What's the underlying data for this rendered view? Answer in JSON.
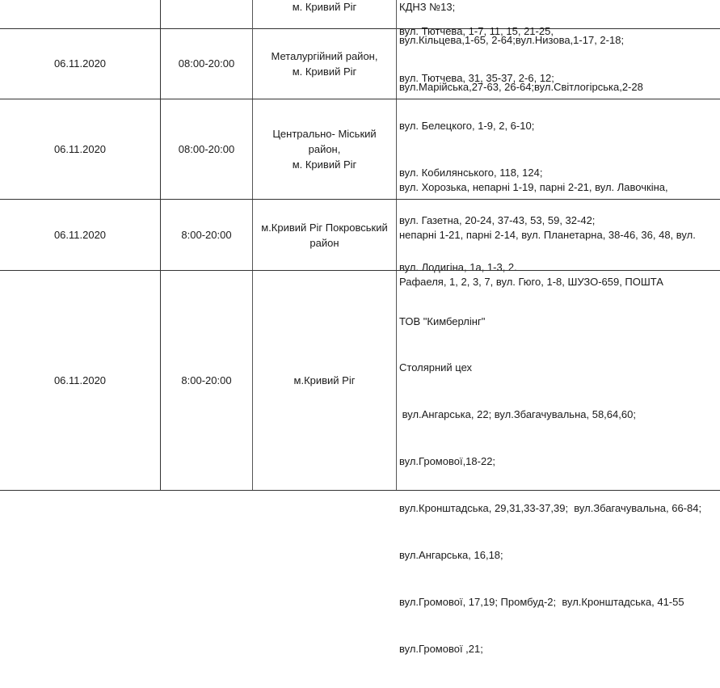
{
  "rows": [
    {
      "date": "",
      "time": "",
      "district": [
        "м. Кривий Ріг"
      ],
      "addresses": [
        "КДНЗ №13;"
      ]
    },
    {
      "date": "06.11.2020",
      "time": "08:00-20:00",
      "district": [
        "Металургійний район,",
        "м. Кривий Ріг"
      ],
      "addresses": [
        "вул.Кільцева,1-65, 2-64;вул.Низова,1-17, 2-18;",
        "вул.Марійська,27-63, 26-64;вул.Світлогірська,2-28"
      ]
    },
    {
      "date": "06.11.2020",
      "time": "08:00-20:00",
      "district": [
        "Центрально- Міський",
        "район,",
        "м. Кривий Ріг"
      ],
      "addresses": [
        "вул. Тютчева, 1-7, 11, 15, 21-25,",
        "вул. Тютчева, 31, 35-37, 2-6, 12;",
        "вул. Белецкого, 1-9, 2, 6-10;",
        "вул. Кобилянського, 118, 124;",
        "вул. Газетна, 20-24, 37-43, 53, 59, 32-42;",
        "вул. Лодигіна, 1а, 1-3, 2."
      ]
    },
    {
      "date": "06.11.2020",
      "time": "8:00-20:00",
      "district": [
        "м.Кривий Ріг Покровський",
        "район"
      ],
      "addresses": [
        "вул. Хорозька, непарні 1-19, парні 2-21, вул. Лавочкіна,",
        "непарні 1-21, парні 2-14, вул. Планетарна, 38-46, 36, 48, вул.",
        "Рафаеля, 1, 2, 3, 7, вул. Гюго, 1-8, ШУЗО-659, ПОШТА"
      ]
    },
    {
      "date": "06.11.2020",
      "time": "8:00-20:00",
      "district": [
        "м.Кривий Ріг"
      ],
      "addresses": [
        "ТОВ \"Кимберлінг\"",
        "Столярний цех",
        " вул.Ангарська, 22; вул.Збагачувальна, 58,64,60;",
        "вул.Громової,18-22;",
        "вул.Кронштадська, 29,31,33-37,39;  вул.Збагачувальна, 66-84;",
        "вул.Ангарська, 16,18;",
        "вул.Громової, 17,19; Промбуд-2;  вул.Кронштадська, 41-55",
        "вул.Громової ,21;"
      ]
    }
  ]
}
